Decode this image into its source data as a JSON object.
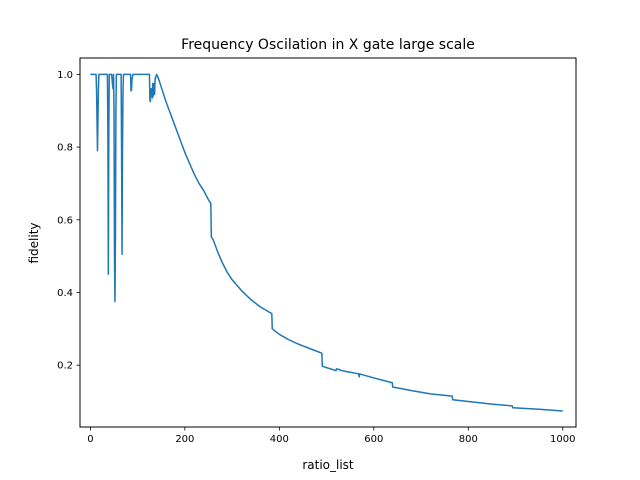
{
  "chart_data": {
    "type": "line",
    "title": "Frequency Oscilation in X gate large scale",
    "xlabel": "ratio_list",
    "ylabel": "fidelity",
    "xlim": [
      -22,
      1028
    ],
    "ylim": [
      0.03,
      1.045
    ],
    "x_ticks": [
      0,
      200,
      400,
      600,
      800,
      1000
    ],
    "x_tick_labels": [
      "0",
      "200",
      "400",
      "600",
      "800",
      "1000"
    ],
    "y_ticks": [
      0.2,
      0.4,
      0.6,
      0.8,
      1.0
    ],
    "y_tick_labels": [
      "0.2",
      "0.4",
      "0.6",
      "0.8",
      "1.0"
    ],
    "grid": false,
    "legend": "none",
    "series": [
      {
        "color": "#1f77b4",
        "x": [
          0,
          12,
          13,
          15,
          17,
          18,
          20,
          36,
          37,
          38,
          39,
          40,
          45,
          47,
          48,
          49,
          50,
          51,
          52,
          53,
          54,
          55,
          60,
          65,
          66,
          67,
          68,
          69,
          70,
          75,
          85,
          86,
          87,
          88,
          90,
          92,
          95,
          125,
          126,
          127,
          128,
          130,
          131,
          132,
          133,
          134,
          135,
          136,
          137,
          138,
          140,
          142,
          145,
          150,
          160,
          170,
          180,
          190,
          200,
          210,
          220,
          230,
          240,
          250,
          255,
          256,
          260,
          270,
          280,
          290,
          300,
          320,
          340,
          360,
          380,
          384,
          385,
          400,
          420,
          440,
          460,
          480,
          490,
          491,
          520,
          521,
          528,
          529,
          540,
          560,
          568,
          569,
          570,
          600,
          638,
          639,
          640,
          680,
          720,
          766,
          767,
          800,
          850,
          893,
          894,
          950,
          1000
        ],
        "y": [
          1.0,
          1.0,
          0.96,
          0.79,
          0.96,
          1.0,
          1.0,
          1.0,
          0.85,
          0.45,
          0.85,
          1.0,
          1.0,
          0.97,
          0.96,
          1.0,
          0.9,
          0.5,
          0.375,
          0.55,
          0.9,
          1.0,
          1.0,
          1.0,
          0.8,
          0.505,
          0.8,
          0.95,
          1.0,
          1.0,
          1.0,
          0.955,
          0.955,
          0.985,
          1.0,
          1.0,
          1.0,
          1.0,
          0.93,
          0.925,
          0.96,
          0.96,
          0.935,
          0.975,
          0.94,
          0.975,
          0.975,
          0.945,
          0.99,
          0.99,
          1.0,
          0.995,
          0.985,
          0.965,
          0.925,
          0.89,
          0.855,
          0.82,
          0.785,
          0.755,
          0.725,
          0.7,
          0.68,
          0.655,
          0.645,
          0.553,
          0.545,
          0.51,
          0.48,
          0.455,
          0.435,
          0.405,
          0.38,
          0.36,
          0.345,
          0.342,
          0.3,
          0.285,
          0.27,
          0.258,
          0.248,
          0.238,
          0.233,
          0.197,
          0.185,
          0.19,
          0.188,
          0.186,
          0.183,
          0.178,
          0.176,
          0.168,
          0.176,
          0.165,
          0.152,
          0.152,
          0.14,
          0.13,
          0.121,
          0.115,
          0.105,
          0.1,
          0.093,
          0.088,
          0.083,
          0.079,
          0.074
        ]
      }
    ]
  }
}
